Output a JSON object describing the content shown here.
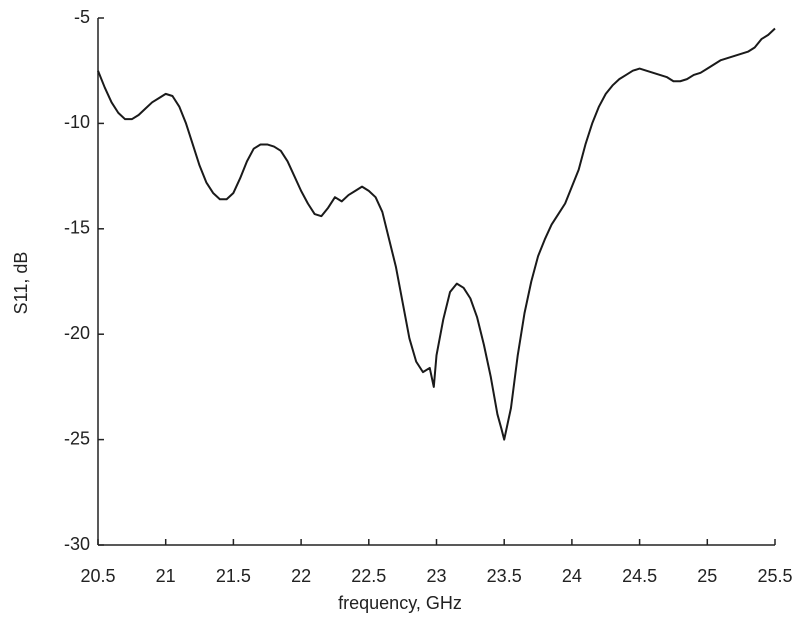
{
  "chart_data": {
    "type": "line",
    "x_label": "frequency, GHz",
    "y_label": "S11, dB",
    "x": [
      20.5,
      20.55,
      20.6,
      20.65,
      20.7,
      20.75,
      20.8,
      20.85,
      20.9,
      20.95,
      21.0,
      21.05,
      21.1,
      21.15,
      21.2,
      21.25,
      21.3,
      21.35,
      21.4,
      21.45,
      21.5,
      21.55,
      21.6,
      21.65,
      21.7,
      21.75,
      21.8,
      21.85,
      21.9,
      21.95,
      22.0,
      22.05,
      22.1,
      22.15,
      22.2,
      22.25,
      22.3,
      22.35,
      22.4,
      22.45,
      22.5,
      22.55,
      22.6,
      22.65,
      22.7,
      22.75,
      22.8,
      22.85,
      22.9,
      22.95,
      22.98,
      23.0,
      23.05,
      23.1,
      23.15,
      23.2,
      23.25,
      23.3,
      23.35,
      23.4,
      23.45,
      23.48,
      23.5,
      23.55,
      23.6,
      23.65,
      23.7,
      23.75,
      23.8,
      23.85,
      23.9,
      23.95,
      24.0,
      24.05,
      24.1,
      24.15,
      24.2,
      24.25,
      24.3,
      24.35,
      24.4,
      24.45,
      24.5,
      24.55,
      24.6,
      24.65,
      24.7,
      24.75,
      24.8,
      24.85,
      24.9,
      24.95,
      25.0,
      25.05,
      25.1,
      25.15,
      25.2,
      25.25,
      25.3,
      25.35,
      25.4,
      25.45,
      25.5
    ],
    "series": [
      {
        "color": "#1a1a1a",
        "values": [
          -7.5,
          -8.3,
          -9.0,
          -9.5,
          -9.8,
          -9.8,
          -9.6,
          -9.3,
          -9.0,
          -8.8,
          -8.6,
          -8.7,
          -9.2,
          -10.0,
          -11.0,
          -12.0,
          -12.8,
          -13.3,
          -13.6,
          -13.6,
          -13.3,
          -12.6,
          -11.8,
          -11.2,
          -11.0,
          -11.0,
          -11.1,
          -11.3,
          -11.8,
          -12.5,
          -13.2,
          -13.8,
          -14.3,
          -14.4,
          -14.0,
          -13.5,
          -13.7,
          -13.4,
          -13.2,
          -13.0,
          -13.2,
          -13.5,
          -14.2,
          -15.5,
          -16.8,
          -18.5,
          -20.2,
          -21.3,
          -21.8,
          -21.6,
          -22.5,
          -21.0,
          -19.3,
          -18.0,
          -17.6,
          -17.8,
          -18.3,
          -19.2,
          -20.5,
          -22.0,
          -23.8,
          -24.5,
          -25.0,
          -23.5,
          -21.0,
          -19.0,
          -17.5,
          -16.3,
          -15.5,
          -14.8,
          -14.3,
          -13.8,
          -13.0,
          -12.2,
          -11.0,
          -10.0,
          -9.2,
          -8.6,
          -8.2,
          -7.9,
          -7.7,
          -7.5,
          -7.4,
          -7.5,
          -7.6,
          -7.7,
          -7.8,
          -8.0,
          -8.0,
          -7.9,
          -7.7,
          -7.6,
          -7.4,
          -7.2,
          -7.0,
          -6.9,
          -6.8,
          -6.7,
          -6.6,
          -6.4,
          -6.0,
          -5.8,
          -5.5
        ]
      }
    ],
    "xlim": [
      20.5,
      25.5
    ],
    "xticks": [
      20.5,
      21,
      21.5,
      22,
      22.5,
      23,
      23.5,
      24,
      24.5,
      25,
      25.5
    ],
    "ylim": [
      -30,
      -5
    ],
    "yticks": [
      -30,
      -25,
      -20,
      -15,
      -10,
      -5
    ],
    "grid": false
  }
}
